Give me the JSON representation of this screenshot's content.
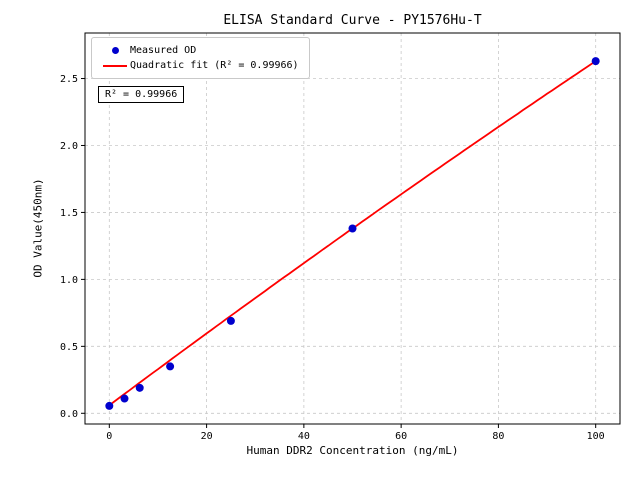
{
  "chart_data": {
    "type": "scatter",
    "title": "ELISA Standard Curve - PY1576Hu-T",
    "xlabel": "Human DDR2 Concentration (ng/mL)",
    "ylabel": "OD Value(450nm)",
    "xlim": [
      -5,
      105
    ],
    "ylim": [
      -0.08,
      2.84
    ],
    "xticks": [
      0,
      20,
      40,
      60,
      80,
      100
    ],
    "yticks": [
      0.0,
      0.5,
      1.0,
      1.5,
      2.0,
      2.5
    ],
    "grid": true,
    "legend_position": "upper left",
    "colors": {
      "points": "#0000cd",
      "fit_line": "#ff0000",
      "grid": "#c9c9c9",
      "axes": "#000000"
    },
    "series": [
      {
        "name": "Measured OD",
        "type": "scatter",
        "color": "#0000cd",
        "x": [
          0,
          3.125,
          6.25,
          12.5,
          25,
          50,
          100
        ],
        "y": [
          0.055,
          0.11,
          0.19,
          0.35,
          0.69,
          1.38,
          2.63
        ]
      },
      {
        "name": "Quadratic fit (R² = 0.99966)",
        "type": "line",
        "color": "#ff0000",
        "fit": {
          "kind": "quadratic",
          "coefficients": [
            0.06,
            0.0271,
            -1.4e-05
          ],
          "range": [
            0,
            100
          ],
          "r_squared": "0.99966"
        }
      }
    ],
    "annotation": {
      "text": "R² = 0.99966"
    }
  }
}
